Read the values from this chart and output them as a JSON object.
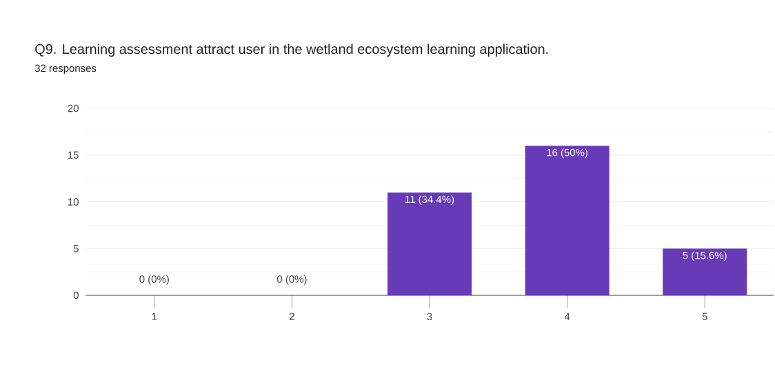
{
  "chart_data": {
    "type": "bar",
    "title": "Q9. Learning assessment attract user in the wetland ecosystem learning application.",
    "subtitle": "32 responses",
    "categories": [
      "1",
      "2",
      "3",
      "4",
      "5"
    ],
    "values": [
      0,
      0,
      11,
      16,
      5
    ],
    "value_labels": [
      "0 (0%)",
      "0 (0%)",
      "11 (34.4%)",
      "16 (50%)",
      "5 (15.6%)"
    ],
    "color": "#673ab7",
    "ylim": [
      0,
      20
    ],
    "yticks": [
      0,
      5,
      10,
      15,
      20
    ],
    "grid": "y"
  }
}
